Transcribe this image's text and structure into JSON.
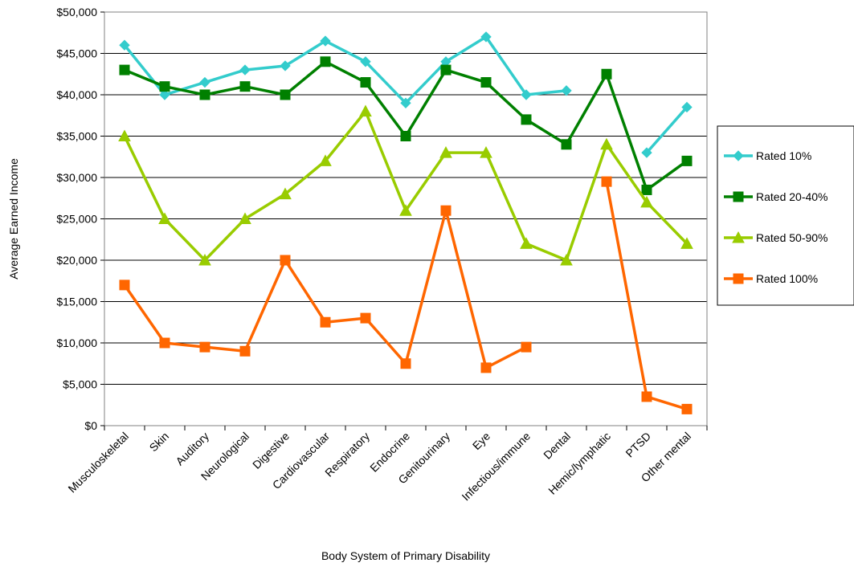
{
  "chart_data": {
    "type": "line",
    "xlabel": "Body System of Primary Disability",
    "ylabel": "Average Earned Income",
    "ylim": [
      0,
      50000
    ],
    "yticks": [
      0,
      5000,
      10000,
      15000,
      20000,
      25000,
      30000,
      35000,
      40000,
      45000,
      50000
    ],
    "ytick_labels": [
      "$0",
      "$5,000",
      "$10,000",
      "$15,000",
      "$20,000",
      "$25,000",
      "$30,000",
      "$35,000",
      "$40,000",
      "$45,000",
      "$50,000"
    ],
    "grid": "horizontal",
    "legend_position": "right",
    "categories": [
      "Musculoskeletal",
      "Skin",
      "Auditory",
      "Neurological",
      "Digestive",
      "Cardiovascular",
      "Respiratory",
      "Endocrine",
      "Genitourinary",
      "Eye",
      "Infectious/immune",
      "Dental",
      "Hemic/lymphatic",
      "PTSD",
      "Other mental"
    ],
    "series": [
      {
        "name": "Rated 10%",
        "color": "#33CCCC",
        "marker": "diamond",
        "values": [
          46000,
          40000,
          41500,
          43000,
          43500,
          46500,
          44000,
          39000,
          44000,
          47000,
          40000,
          40500,
          null,
          33000,
          38500
        ]
      },
      {
        "name": "Rated 20-40%",
        "color": "#008000",
        "marker": "square",
        "values": [
          43000,
          41000,
          40000,
          41000,
          40000,
          44000,
          41500,
          35000,
          43000,
          41500,
          37000,
          34000,
          42500,
          28500,
          32000
        ]
      },
      {
        "name": "Rated 50-90%",
        "color": "#99CC00",
        "marker": "triangle",
        "values": [
          35000,
          25000,
          20000,
          25000,
          28000,
          32000,
          38000,
          26000,
          33000,
          33000,
          22000,
          20000,
          34000,
          27000,
          22000
        ]
      },
      {
        "name": "Rated 100%",
        "color": "#FF6600",
        "marker": "square",
        "values": [
          17000,
          10000,
          9500,
          9000,
          20000,
          12500,
          13000,
          7500,
          26000,
          7000,
          9500,
          null,
          29500,
          3500,
          2000
        ]
      }
    ]
  }
}
